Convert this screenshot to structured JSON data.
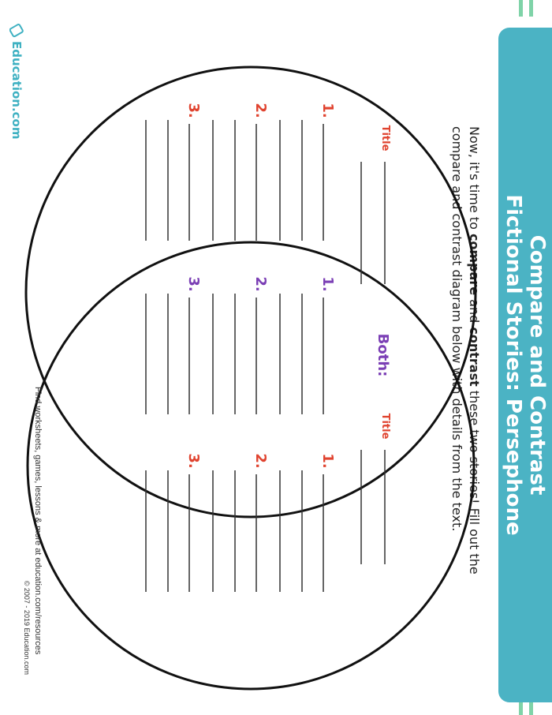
{
  "header": {
    "title_line1": "Compare and Contrast",
    "title_line2": "Fictional Stories: Persephone"
  },
  "instructions": {
    "parts": [
      "Now, it's time to ",
      "compare",
      " and ",
      "contrast",
      " these two stories! Fill out the compare and contrast diagram below with details from the text."
    ]
  },
  "diagram": {
    "left": {
      "label": "Title",
      "items": [
        "1.",
        "2.",
        "3."
      ]
    },
    "both": {
      "label": "Both:",
      "items": [
        "1.",
        "2.",
        "3."
      ]
    },
    "right": {
      "label": "Title",
      "items": [
        "1.",
        "2.",
        "3."
      ]
    }
  },
  "logo": "Education.com",
  "footer": {
    "line1": "Find worksheets, games, lessons & more at education.com/resources",
    "line2": "© 2007 - 2019 Education.com"
  }
}
